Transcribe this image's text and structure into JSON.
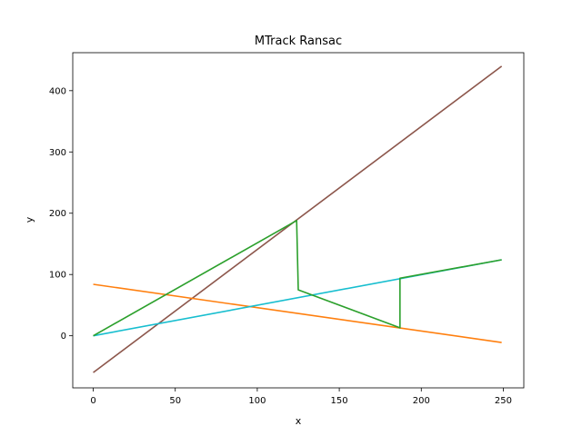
{
  "chart_data": {
    "type": "line",
    "title": "MTrack Ransac",
    "xlabel": "x",
    "ylabel": "y",
    "xlim": [
      -12.5,
      262.5
    ],
    "ylim": [
      -85,
      462
    ],
    "xticks": [
      0,
      50,
      100,
      150,
      200,
      250
    ],
    "yticks": [
      0,
      100,
      200,
      300,
      400
    ],
    "grid": false,
    "series": [
      {
        "color": "#8c564b",
        "x": [
          0,
          249
        ],
        "y": [
          -60,
          440
        ]
      },
      {
        "color": "#ff7f0e",
        "x": [
          0,
          249
        ],
        "y": [
          84,
          -11
        ]
      },
      {
        "color": "#17becf",
        "x": [
          0,
          249
        ],
        "y": [
          0,
          124
        ]
      },
      {
        "color": "#2ca02c",
        "x": [
          0,
          124,
          125,
          187,
          187,
          249
        ],
        "y": [
          0,
          188,
          75,
          13,
          94,
          124
        ]
      }
    ]
  }
}
